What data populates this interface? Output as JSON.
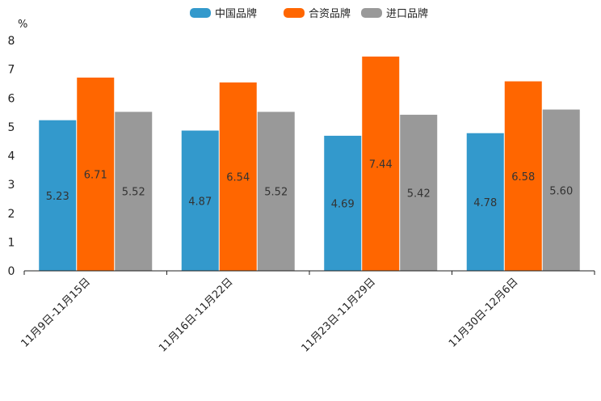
{
  "chart_data": {
    "type": "bar",
    "unit": "%",
    "categories": [
      "11月9日-11月15日",
      "11月16日-11月22日",
      "11月23日-11月29日",
      "11月30日-12月6日"
    ],
    "series": [
      {
        "name": "中国品牌",
        "color": "#3399CC",
        "values": [
          5.23,
          4.87,
          4.69,
          4.78
        ],
        "labels": [
          "5.23",
          "4.87",
          "4.69",
          "4.78"
        ]
      },
      {
        "name": "合资品牌",
        "color": "#FF6600",
        "values": [
          6.71,
          6.54,
          7.44,
          6.58
        ],
        "labels": [
          "6.71",
          "6.54",
          "7.44",
          "6.58"
        ]
      },
      {
        "name": "进口品牌",
        "color": "#999999",
        "values": [
          5.52,
          5.52,
          5.42,
          5.6
        ],
        "labels": [
          "5.52",
          "5.52",
          "5.42",
          "5.60"
        ]
      }
    ],
    "ylim": [
      0,
      8
    ],
    "yticks": [
      "0",
      "1",
      "2",
      "3",
      "4",
      "5",
      "6",
      "7",
      "8"
    ],
    "legend": "top-center",
    "grid": false
  }
}
